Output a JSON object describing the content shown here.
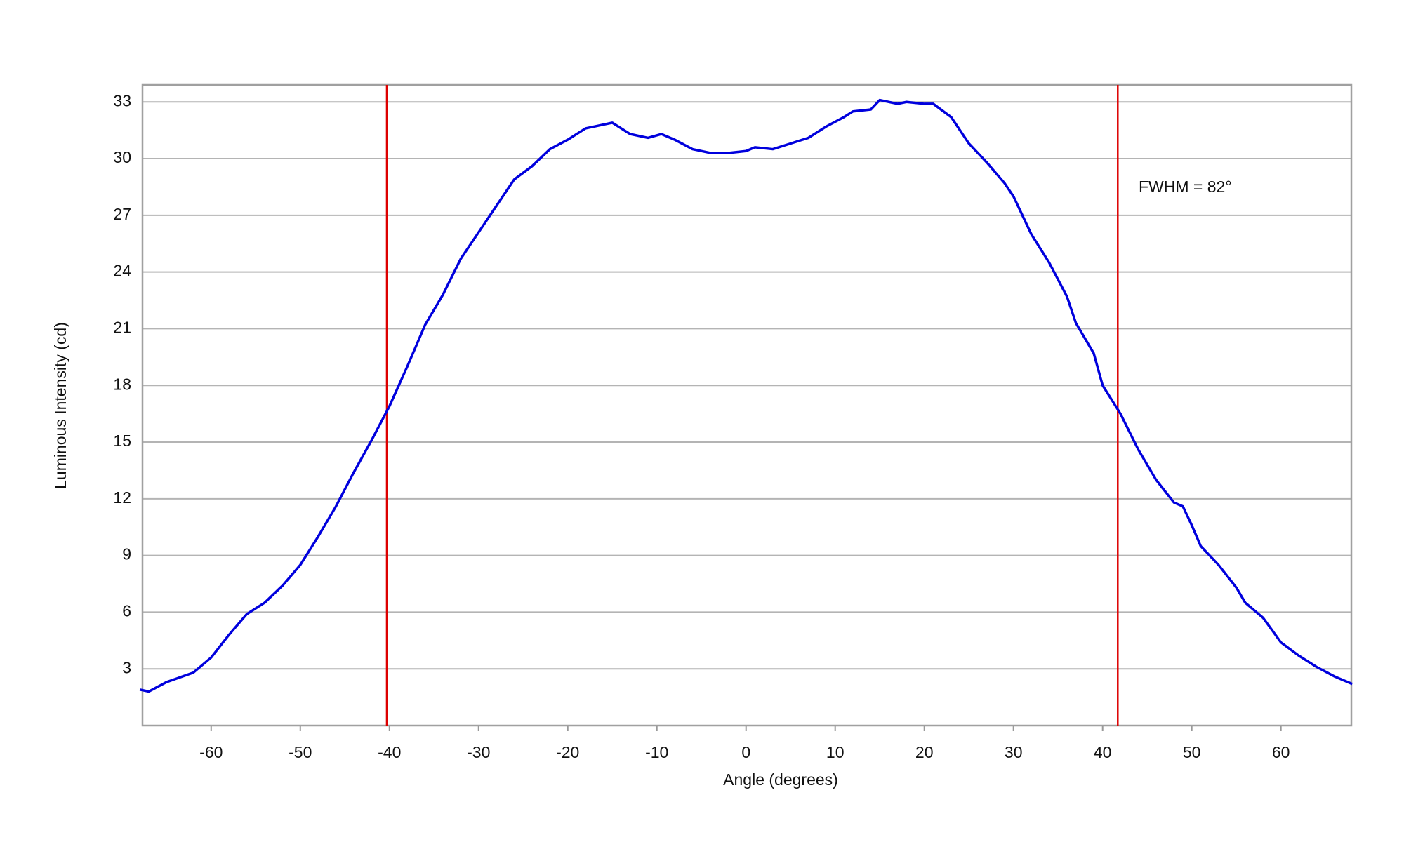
{
  "chart_data": {
    "type": "line",
    "xlabel": "Angle (degrees)",
    "ylabel": "Luminous Intensity (cd)",
    "annotation": "FWHM = 82°",
    "x": [
      -68,
      -67,
      -65,
      -62,
      -60,
      -58,
      -56,
      -54,
      -52,
      -50,
      -48,
      -46,
      -44,
      -42,
      -40,
      -38,
      -36,
      -34,
      -32,
      -30,
      -28,
      -26,
      -24,
      -22,
      -20,
      -18,
      -16,
      -15,
      -13,
      -11,
      -9.5,
      -8,
      -6,
      -4,
      -2,
      0,
      1,
      3,
      5,
      7,
      9,
      11,
      12,
      14,
      15,
      17,
      18,
      20,
      21,
      23,
      25,
      27,
      29,
      30,
      32,
      34,
      36,
      37,
      39,
      40,
      42,
      44,
      46,
      48,
      49,
      50,
      51,
      53,
      55,
      56,
      58,
      60,
      62,
      64,
      66,
      67,
      68
    ],
    "series": [
      {
        "color": "#0000dd",
        "values": [
          1.9,
          1.8,
          2.3,
          2.8,
          3.6,
          4.8,
          5.9,
          6.5,
          7.4,
          8.5,
          10.0,
          11.6,
          13.4,
          15.1,
          16.9,
          19.0,
          21.2,
          22.8,
          24.7,
          26.1,
          27.5,
          28.9,
          29.6,
          30.5,
          31.0,
          31.6,
          31.8,
          31.9,
          31.3,
          31.1,
          31.3,
          31.0,
          30.5,
          30.3,
          30.3,
          30.4,
          30.6,
          30.5,
          30.8,
          31.1,
          31.7,
          32.2,
          32.5,
          32.6,
          33.1,
          32.9,
          33.0,
          32.9,
          32.9,
          32.2,
          30.8,
          29.8,
          28.7,
          28.0,
          26.0,
          24.5,
          22.7,
          21.3,
          19.7,
          18.0,
          16.5,
          14.6,
          13.0,
          11.8,
          11.6,
          10.6,
          9.5,
          8.5,
          7.3,
          6.5,
          5.7,
          4.4,
          3.7,
          3.1,
          2.6,
          2.4,
          2.2
        ]
      }
    ],
    "reference_lines": {
      "color": "#dd0000",
      "x": [
        -40.3,
        41.7
      ]
    },
    "xlim": [
      -67.7,
      67.9
    ],
    "ylim": [
      0,
      33.9
    ],
    "xticks": [
      -60,
      -50,
      -40,
      -30,
      -20,
      -10,
      0,
      10,
      20,
      30,
      40,
      50,
      60
    ],
    "yticks": [
      3,
      6,
      9,
      12,
      15,
      18,
      21,
      24,
      27,
      30,
      33
    ],
    "grid": true
  }
}
